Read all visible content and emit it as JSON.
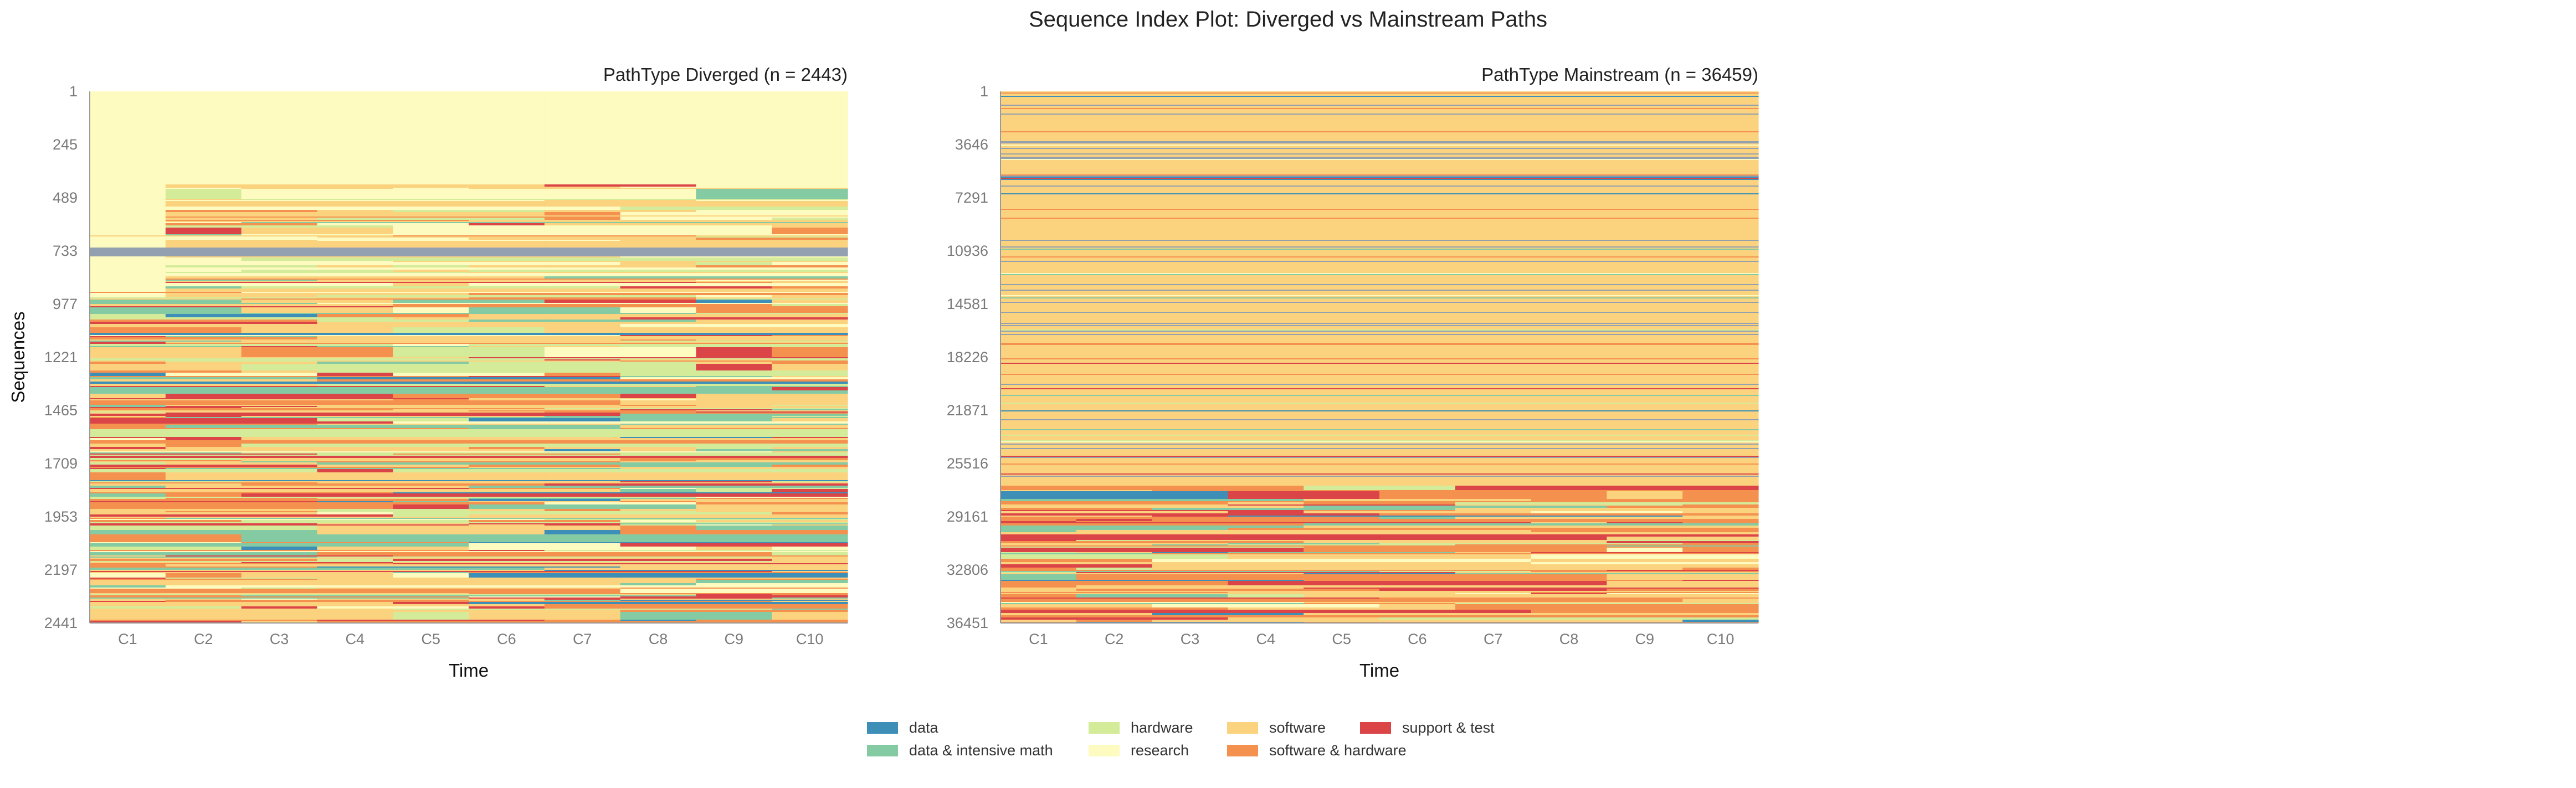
{
  "figure": {
    "title": "Sequence Index Plot: Diverged vs Mainstream Paths"
  },
  "states": [
    {
      "name": "data",
      "color": "#3d8fb8"
    },
    {
      "name": "data & intensive math",
      "color": "#84cba3"
    },
    {
      "name": "hardware",
      "color": "#d4eb9a"
    },
    {
      "name": "research",
      "color": "#fdfbbf"
    },
    {
      "name": "software",
      "color": "#fbd37f"
    },
    {
      "name": "software & hardware",
      "color": "#f5914f"
    },
    {
      "name": "support & test",
      "color": "#dc4548"
    }
  ],
  "legend": {
    "position": "bottom-center",
    "columns": 5
  },
  "chart_data": [
    {
      "type": "heatmap",
      "title": "PathType Diverged (n = 2443)",
      "xlabel": "Time",
      "ylabel": "Sequences",
      "x_categories": [
        "C1",
        "C2",
        "C3",
        "C4",
        "C5",
        "C6",
        "C7",
        "C8",
        "C9",
        "C10"
      ],
      "y_ticks": [
        "1",
        "245",
        "489",
        "733",
        "977",
        "1221",
        "1465",
        "1709",
        "1953",
        "2197",
        "2441"
      ],
      "n_sequences": 2443,
      "grid": false,
      "description_blocks": [
        {
          "rows": [
            1,
            560
          ],
          "C1": "research",
          "C2-C10": "research"
        },
        {
          "rows": [
            560,
            1030
          ],
          "C1": "research",
          "C2-C10": "mixed software / research / hardware"
        },
        {
          "rows": [
            1030,
            2443
          ],
          "all": "mixed: software, software & hardware, support & test, hardware, data & intensive math, data"
        }
      ]
    },
    {
      "type": "heatmap",
      "title": "PathType Mainstream (n = 36459)",
      "xlabel": "Time",
      "ylabel": "",
      "x_categories": [
        "C1",
        "C2",
        "C3",
        "C4",
        "C5",
        "C6",
        "C7",
        "C8",
        "C9",
        "C10"
      ],
      "y_ticks": [
        "1",
        "3646",
        "7291",
        "10936",
        "14581",
        "18226",
        "21871",
        "25516",
        "29161",
        "32806",
        "36451"
      ],
      "n_sequences": 36459,
      "grid": false,
      "description_blocks": [
        {
          "rows": [
            1,
            27000
          ],
          "all": "mostly software with constant-state lines of software & hardware, support & test, data"
        },
        {
          "rows": [
            27000,
            36459
          ],
          "all": "mixed transitions: software, software & hardware, support & test, data"
        }
      ]
    }
  ]
}
